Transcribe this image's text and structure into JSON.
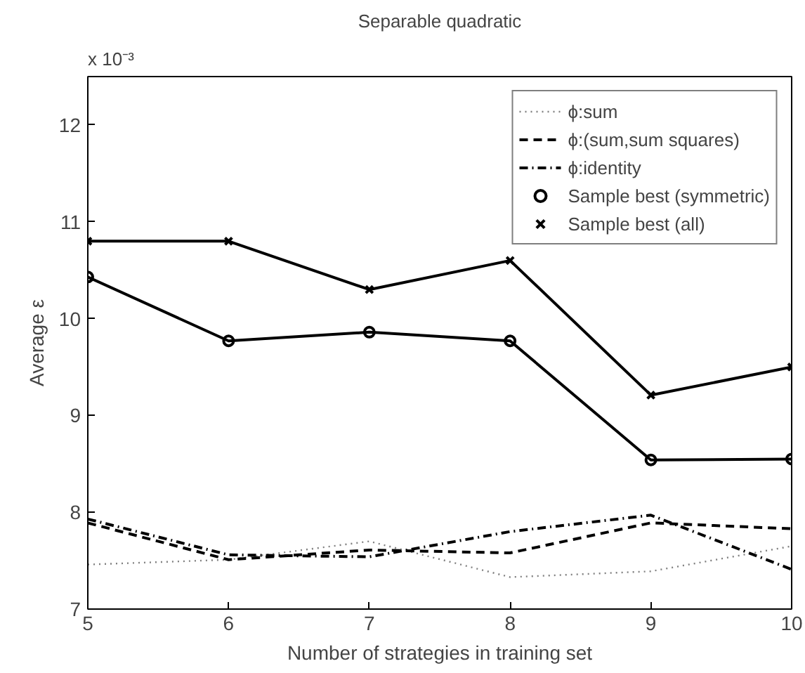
{
  "chart_data": {
    "type": "line",
    "title": "Separable quadratic",
    "xlabel": "Number of strategies in training set",
    "ylabel": "Average ε",
    "annotations": [
      "x 10⁻³"
    ],
    "x": [
      5,
      6,
      7,
      8,
      9,
      10
    ],
    "xlim": [
      5,
      10
    ],
    "xticks": [
      5,
      6,
      7,
      8,
      9,
      10
    ],
    "ylim": [
      7,
      12.5
    ],
    "yticks": [
      7,
      8,
      9,
      10,
      11,
      12
    ],
    "grid": false,
    "legend": "top right",
    "series": [
      {
        "name": "ϕ:sum",
        "color": "#808080",
        "line_style": "dotted",
        "marker": "none",
        "values": [
          7.46,
          7.51,
          7.7,
          7.33,
          7.39,
          7.65
        ]
      },
      {
        "name": "ϕ:(sum,sum squares)",
        "color": "#000000",
        "line_style": "dashed",
        "marker": "none",
        "values": [
          7.89,
          7.51,
          7.61,
          7.58,
          7.89,
          7.83
        ]
      },
      {
        "name": "ϕ:identity",
        "color": "#000000",
        "line_style": "dashdot",
        "marker": "none",
        "values": [
          7.93,
          7.56,
          7.54,
          7.8,
          7.97,
          7.41
        ]
      },
      {
        "name": "Sample best (symmetric)",
        "color": "#000000",
        "line_style": "solid",
        "marker": "circle",
        "values": [
          10.43,
          9.77,
          9.86,
          9.77,
          8.54,
          8.55
        ]
      },
      {
        "name": "Sample best (all)",
        "color": "#000000",
        "line_style": "solid",
        "marker": "cross",
        "values": [
          10.8,
          10.8,
          10.3,
          10.6,
          9.21,
          9.5
        ]
      }
    ]
  }
}
